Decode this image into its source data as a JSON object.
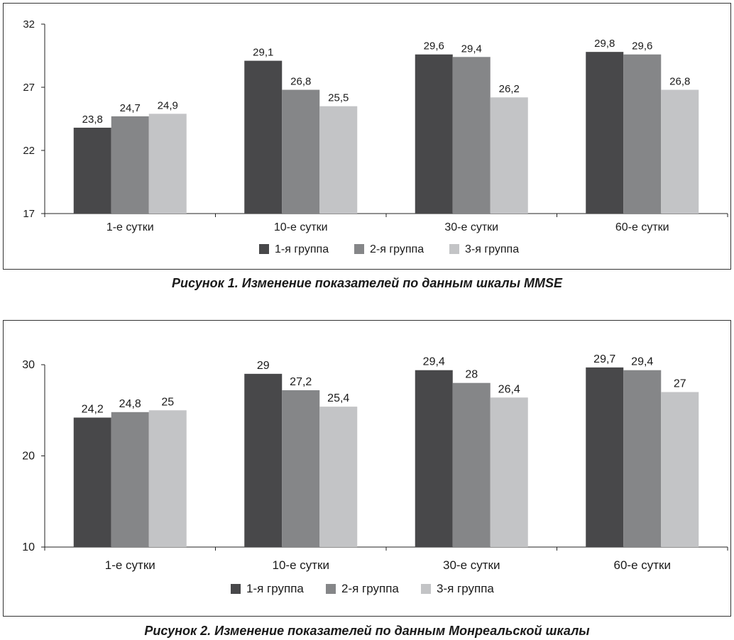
{
  "colors": {
    "group1": "#48484a",
    "group2": "#858688",
    "group3": "#c3c4c6",
    "axis": "#222222"
  },
  "captions": {
    "fig1": "Рисунок 1. Изменение показателей по данным шкалы MMSE",
    "fig2": "Рисунок 2. Изменение показателей по данным Монреальской шкалы"
  },
  "chart_data": [
    {
      "type": "bar",
      "categories": [
        "1-е сутки",
        "10-е сутки",
        "30-е сутки",
        "60-е сутки"
      ],
      "series": [
        {
          "name": "1-я группа",
          "values": [
            23.8,
            29.1,
            29.6,
            29.8
          ],
          "labels": [
            "23,8",
            "29,1",
            "29,6",
            "29,8"
          ]
        },
        {
          "name": "2-я группа",
          "values": [
            24.7,
            26.8,
            29.4,
            29.6
          ],
          "labels": [
            "24,7",
            "26,8",
            "29,4",
            "29,6"
          ]
        },
        {
          "name": "3-я группа",
          "values": [
            24.9,
            25.5,
            26.2,
            26.8
          ],
          "labels": [
            "24,9",
            "25,5",
            "26,2",
            "26,8"
          ]
        }
      ],
      "ylim": [
        17,
        32
      ],
      "yticks": [
        17,
        22,
        27,
        32
      ],
      "legend": "bottom",
      "grid": false
    },
    {
      "type": "bar",
      "categories": [
        "1-е сутки",
        "10-е сутки",
        "30-е сутки",
        "60-е сутки"
      ],
      "series": [
        {
          "name": "1-я группа",
          "values": [
            24.2,
            29,
            29.4,
            29.7
          ],
          "labels": [
            "24,2",
            "29",
            "29,4",
            "29,7"
          ]
        },
        {
          "name": "2-я группа",
          "values": [
            24.8,
            27.2,
            28,
            29.4
          ],
          "labels": [
            "24,8",
            "27,2",
            "28",
            "29,4"
          ]
        },
        {
          "name": "3-я группа",
          "values": [
            25,
            25.4,
            26.4,
            27
          ],
          "labels": [
            "25",
            "25,4",
            "26,4",
            "27"
          ]
        }
      ],
      "ylim": [
        10,
        30
      ],
      "yticks": [
        10,
        20,
        30
      ],
      "legend": "bottom",
      "grid": false
    }
  ]
}
